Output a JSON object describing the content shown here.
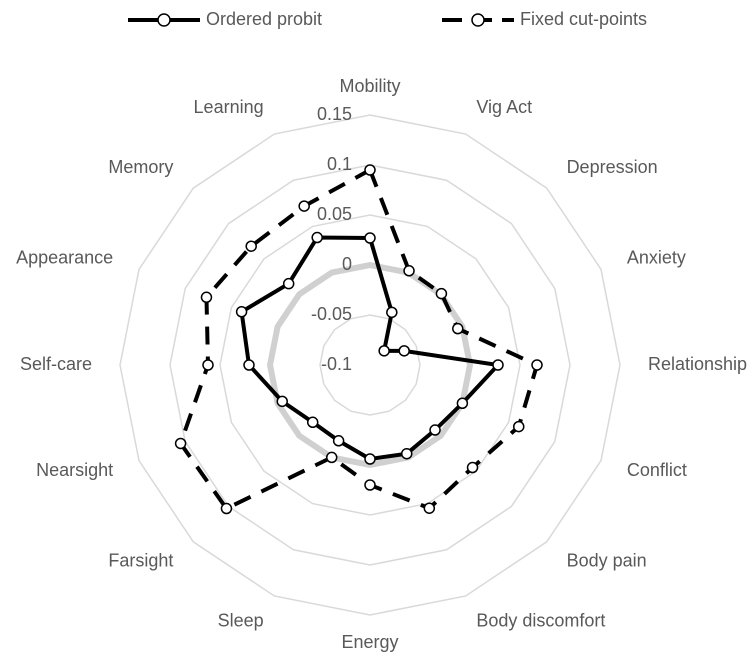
{
  "chart_data": {
    "type": "radar",
    "categories": [
      "Mobility",
      "Vig Act",
      "Depression",
      "Anxiety",
      "Relationship",
      "Conflict",
      "Body pain",
      "Body discomfort",
      "Energy",
      "Sleep",
      "Farsight",
      "Nearsight",
      "Self-care",
      "Appearance",
      "Memory",
      "Learning"
    ],
    "series": [
      {
        "name": "Ordered probit",
        "color": "#000000",
        "dash": "solid",
        "values": [
          0.027,
          -0.043,
          -0.08,
          -0.063,
          0.028,
          0.0,
          -0.008,
          -0.004,
          -0.006,
          -0.018,
          -0.019,
          -0.005,
          0.021,
          0.039,
          0.015,
          0.038
        ]
      },
      {
        "name": "Fixed cut-points",
        "color": "#000000",
        "dash": "dashed",
        "values": [
          0.095,
          0.002,
          0.001,
          -0.005,
          0.067,
          0.061,
          0.045,
          0.055,
          0.02,
          0.0,
          0.103,
          0.105,
          0.062,
          0.077,
          0.068,
          0.072
        ]
      }
    ],
    "ylim": [
      -0.1,
      0.15
    ],
    "yticks": [
      -0.1,
      -0.05,
      0,
      0.05,
      0.1,
      0.15
    ],
    "grid": true,
    "legend": "top"
  }
}
